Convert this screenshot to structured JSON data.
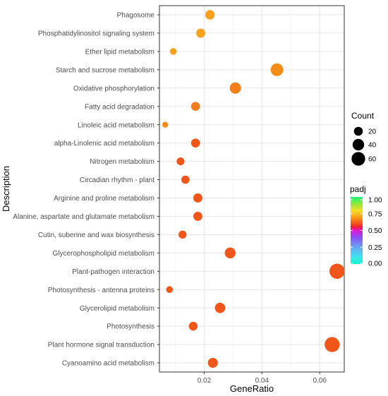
{
  "chart_data": {
    "type": "scatter",
    "xlabel": "GeneRatio",
    "ylabel": "Description",
    "xlim": [
      0.0045,
      0.0685
    ],
    "x_ticks": [
      0.02,
      0.04,
      0.06
    ],
    "x_tick_labels": [
      "0.02",
      "0.04",
      "0.06"
    ],
    "grid": true,
    "legend_position": "right",
    "points": [
      {
        "label": "Phagosome",
        "x": 0.022,
        "count": 24,
        "padj": 0.78,
        "color": "#f7a21b"
      },
      {
        "label": "Phosphatidylinositol signaling system",
        "x": 0.0188,
        "count": 21,
        "padj": 0.78,
        "color": "#f7a21b"
      },
      {
        "label": "Ether lipid metabolism",
        "x": 0.0093,
        "count": 9,
        "padj": 0.76,
        "color": "#f6a118"
      },
      {
        "label": "Starch and sucrose metabolism",
        "x": 0.0452,
        "count": 50,
        "padj": 0.72,
        "color": "#f48c1a"
      },
      {
        "label": "Oxidative phosphorylation",
        "x": 0.0308,
        "count": 37,
        "padj": 0.7,
        "color": "#f27e1c"
      },
      {
        "label": "Fatty acid degradation",
        "x": 0.017,
        "count": 20,
        "padj": 0.7,
        "color": "#f47e1e"
      },
      {
        "label": "Linoleic acid metabolism",
        "x": 0.0065,
        "count": 6,
        "padj": 0.7,
        "color": "#f48a1c"
      },
      {
        "label": "alpha-Linolenic acid metabolism",
        "x": 0.017,
        "count": 20,
        "padj": 0.62,
        "color": "#f0561a"
      },
      {
        "label": "Nitrogen metabolism",
        "x": 0.0118,
        "count": 14,
        "padj": 0.62,
        "color": "#f0561a"
      },
      {
        "label": "Circadian rhythm - plant",
        "x": 0.0135,
        "count": 16,
        "padj": 0.62,
        "color": "#f0561a"
      },
      {
        "label": "Arginine and proline metabolism",
        "x": 0.0178,
        "count": 21,
        "padj": 0.62,
        "color": "#f0561a"
      },
      {
        "label": "Alanine, aspartate and glutamate metabolism",
        "x": 0.0178,
        "count": 21,
        "padj": 0.62,
        "color": "#f0561a"
      },
      {
        "label": "Cutin, suberine and wax biosynthesis",
        "x": 0.0125,
        "count": 15,
        "padj": 0.62,
        "color": "#f0561a"
      },
      {
        "label": "Glycerophospholipid metabolism",
        "x": 0.029,
        "count": 34,
        "padj": 0.62,
        "color": "#f0561a"
      },
      {
        "label": "Plant-pathogen interaction",
        "x": 0.066,
        "count": 77,
        "padj": 0.62,
        "color": "#f0561a"
      },
      {
        "label": "Photosynthesis - antenna proteins",
        "x": 0.008,
        "count": 9,
        "padj": 0.62,
        "color": "#f0561a"
      },
      {
        "label": "Glycerolipid metabolism",
        "x": 0.0255,
        "count": 30,
        "padj": 0.62,
        "color": "#f0561a"
      },
      {
        "label": "Photosynthesis",
        "x": 0.0162,
        "count": 19,
        "padj": 0.62,
        "color": "#f0561a"
      },
      {
        "label": "Plant hormone signal transduction",
        "x": 0.0643,
        "count": 75,
        "padj": 0.62,
        "color": "#f0561a"
      },
      {
        "label": "Cyanoamino acid metabolism",
        "x": 0.023,
        "count": 27,
        "padj": 0.62,
        "color": "#f0561a"
      }
    ],
    "size_legend": {
      "title": "Count",
      "values": [
        20,
        40,
        60
      ],
      "labels": [
        "20",
        "40",
        "60"
      ]
    },
    "color_legend": {
      "title": "padj",
      "ticks": [
        "1.00",
        "0.75",
        "0.50",
        "0.25",
        "0.00"
      ],
      "tick_values": [
        1.0,
        0.75,
        0.5,
        0.25,
        0.0
      ],
      "gradient_stops": [
        {
          "value": 1.0,
          "color": "#1ef27a"
        },
        {
          "value": 0.9,
          "color": "#8fe83a"
        },
        {
          "value": 0.8,
          "color": "#f2e02a"
        },
        {
          "value": 0.7,
          "color": "#f7a01c"
        },
        {
          "value": 0.6,
          "color": "#f2501c"
        },
        {
          "value": 0.55,
          "color": "#f01c3c"
        },
        {
          "value": 0.5,
          "color": "#e01ad2"
        },
        {
          "value": 0.4,
          "color": "#8a4cf2"
        },
        {
          "value": 0.25,
          "color": "#6aa6f2"
        },
        {
          "value": 0.1,
          "color": "#3ae6ea"
        },
        {
          "value": 0.0,
          "color": "#18f2d2"
        }
      ]
    }
  }
}
